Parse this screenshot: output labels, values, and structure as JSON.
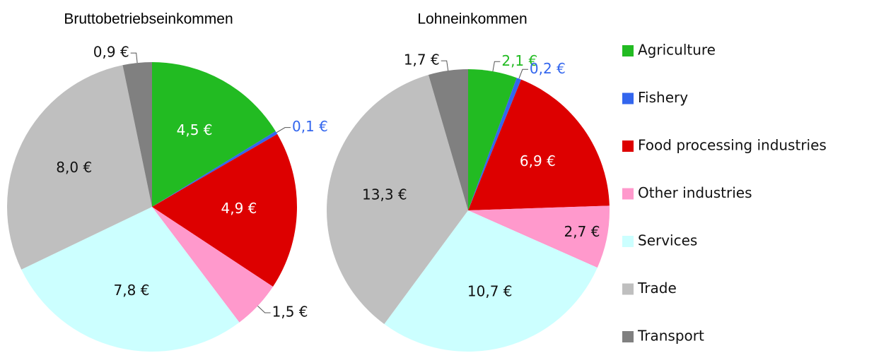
{
  "chart_data": [
    {
      "type": "pie",
      "title": "Bruttobetriebseinkommen",
      "categories": [
        "Agriculture",
        "Fishery",
        "Food processing industries",
        "Other industries",
        "Services",
        "Trade",
        "Transport"
      ],
      "values": [
        4.5,
        0.1,
        4.9,
        1.5,
        7.8,
        8.0,
        0.9
      ],
      "value_labels": [
        "4,5 €",
        "0,1 €",
        "4,9 €",
        "1,5 €",
        "7,8 €",
        "8,0 €",
        "0,9 €"
      ],
      "colors": [
        "#22bb22",
        "#3366ee",
        "#dd0000",
        "#ff99cc",
        "#ccffff",
        "#bfbfbf",
        "#808080"
      ]
    },
    {
      "type": "pie",
      "title": "Lohneinkommen",
      "categories": [
        "Agriculture",
        "Fishery",
        "Food processing industries",
        "Other industries",
        "Services",
        "Trade",
        "Transport"
      ],
      "values": [
        2.1,
        0.2,
        6.9,
        2.7,
        10.7,
        13.3,
        1.7
      ],
      "value_labels": [
        "2,1 €",
        "0,2 €",
        "6,9 €",
        "2,7 €",
        "10,7 €",
        "13,3 €",
        "1,7 €"
      ],
      "colors": [
        "#22bb22",
        "#3366ee",
        "#dd0000",
        "#ff99cc",
        "#ccffff",
        "#bfbfbf",
        "#808080"
      ]
    }
  ]
}
